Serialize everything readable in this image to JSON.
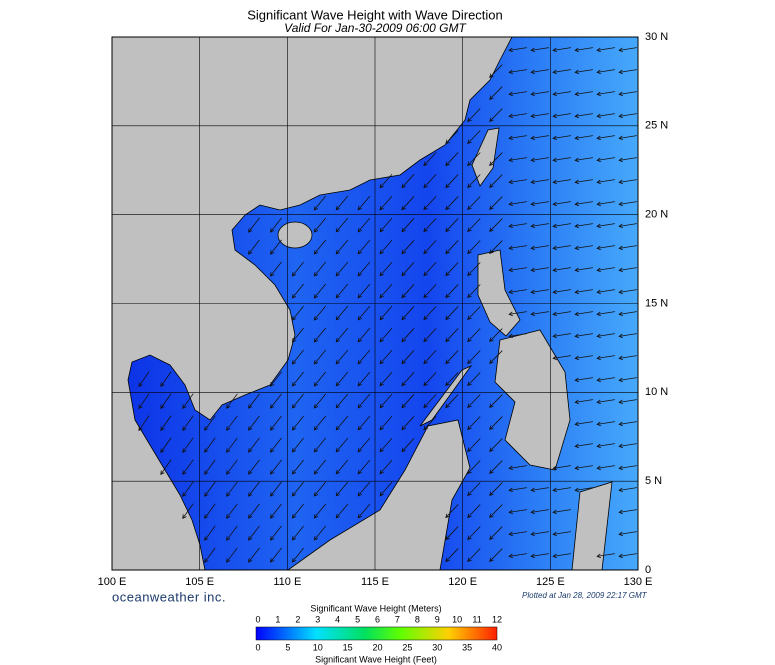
{
  "title": "Significant Wave Height with Wave Direction",
  "subtitle": "Valid For Jan-30-2009 06:00 GMT",
  "lat_labels": [
    "30 N",
    "25 N",
    "20 N",
    "15 N",
    "10 N",
    "5 N",
    "0"
  ],
  "lon_labels": [
    "100 E",
    "105 E",
    "110 E",
    "115 E",
    "120 E",
    "125 E",
    "130 E"
  ],
  "brand": "oceanweather inc.",
  "plotted": "Plotted at Jan 28, 2009 22:17 GMT",
  "legend": {
    "meters_title": "Significant Wave Height (Meters)",
    "meters_ticks": [
      "0",
      "1",
      "2",
      "3",
      "4",
      "5",
      "6",
      "7",
      "8",
      "9",
      "10",
      "11",
      "12"
    ],
    "feet_title": "Significant Wave Height (Feet)",
    "feet_ticks": [
      "0",
      "5",
      "10",
      "15",
      "20",
      "25",
      "30",
      "35",
      "40"
    ]
  }
}
